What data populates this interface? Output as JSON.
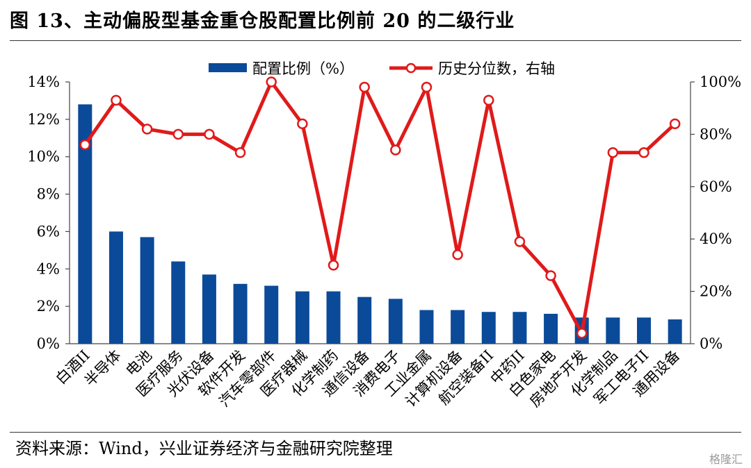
{
  "title": "图 13、主动偏股型基金重仓股配置比例前 20 的二级行业",
  "source": "资料来源：Wind，兴业证券经济与金融研究院整理",
  "watermark": "格隆汇",
  "colors": {
    "bar": "#0b4a99",
    "line": "#e01a1a"
  },
  "chart_data": {
    "type": "bar",
    "categories": [
      "白酒II",
      "半导体",
      "电池",
      "医疗服务",
      "光伏设备",
      "软件开发",
      "汽车零部件",
      "医疗器械",
      "化学制药",
      "通信设备",
      "消费电子",
      "工业金属",
      "计算机设备",
      "航空装备II",
      "中药II",
      "白色家电",
      "房地产开发",
      "化学制品",
      "军工电子II",
      "通用设备"
    ],
    "series": [
      {
        "name": "配置比例（%）",
        "type": "bar",
        "axis": "left",
        "values": [
          12.8,
          6.0,
          5.7,
          4.4,
          3.7,
          3.2,
          3.1,
          2.8,
          2.8,
          2.5,
          2.4,
          1.8,
          1.8,
          1.7,
          1.7,
          1.6,
          1.4,
          1.4,
          1.4,
          1.3
        ]
      },
      {
        "name": "历史分位数，右轴",
        "type": "line",
        "axis": "right",
        "values": [
          76,
          93,
          82,
          80,
          80,
          73,
          100,
          84,
          30,
          98,
          74,
          98,
          34,
          93,
          39,
          26,
          4,
          73,
          73,
          84
        ]
      }
    ],
    "left_axis": {
      "ylim": [
        0,
        14
      ],
      "ticks": [
        0,
        2,
        4,
        6,
        8,
        10,
        12,
        14
      ],
      "tick_labels": [
        "0%",
        "2%",
        "4%",
        "6%",
        "8%",
        "10%",
        "12%",
        "14%"
      ]
    },
    "right_axis": {
      "ylim": [
        0,
        100
      ],
      "ticks": [
        0,
        20,
        40,
        60,
        80,
        100
      ],
      "tick_labels": [
        "0%",
        "20%",
        "40%",
        "60%",
        "80%",
        "100%"
      ]
    },
    "legend_position": "top-center",
    "grid": false
  }
}
